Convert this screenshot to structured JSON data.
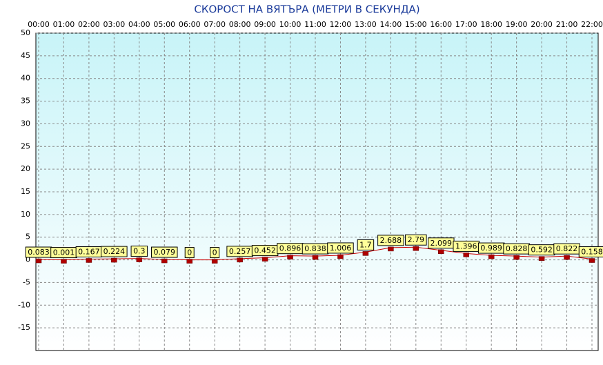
{
  "chart_data": {
    "type": "line",
    "title": "СКОРОСТ НА ВЯТЪРА (МЕТРИ В СЕКУНДА)",
    "categories": [
      "00:00",
      "01:00",
      "02:00",
      "03:00",
      "04:00",
      "05:00",
      "06:00",
      "07:00",
      "08:00",
      "09:00",
      "10:00",
      "11:00",
      "12:00",
      "13:00",
      "14:00",
      "15:00",
      "16:00",
      "17:00",
      "18:00",
      "19:00",
      "20:00",
      "21:00",
      "22:00"
    ],
    "series": [
      {
        "color": "#cc0000",
        "values": [
          0.083,
          0.001,
          0.167,
          0.224,
          0.3,
          0.079,
          0,
          0,
          0.257,
          0.452,
          0.896,
          0.838,
          1.006,
          1.7,
          2.688,
          2.79,
          2.099,
          1.396,
          0.989,
          0.828,
          0.592,
          0.822,
          0.158
        ]
      }
    ],
    "ylim": [
      -20,
      50
    ],
    "yticks": [
      -15,
      -10,
      -5,
      0,
      5,
      10,
      15,
      20,
      25,
      30,
      35,
      40,
      45,
      50
    ],
    "grid": true
  }
}
